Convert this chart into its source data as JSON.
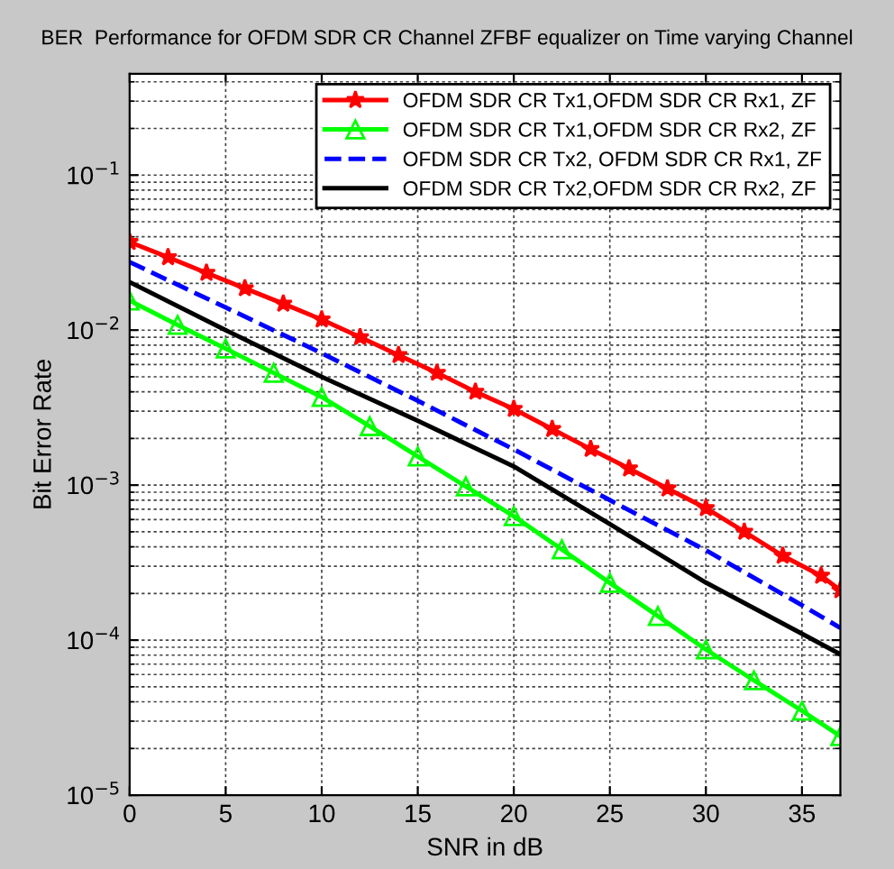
{
  "chart_data": {
    "type": "line",
    "title": "BER  Performance for OFDM SDR CR Channel ZFBF equalizer on Time varying Channel",
    "xlabel": "SNR in dB",
    "ylabel": "Bit Error Rate",
    "log": "y",
    "xlim": [
      0,
      37
    ],
    "ylim": [
      1e-05,
      0.45
    ],
    "xticks": [
      0,
      5,
      10,
      15,
      20,
      25,
      30,
      35
    ],
    "yticks": [
      {
        "value": 1e-05,
        "label": "10$^{−5}$"
      },
      {
        "value": 0.0001,
        "label": "10$^{−4}$"
      },
      {
        "value": 0.001,
        "label": "10$^{−3}$"
      },
      {
        "value": 0.01,
        "label": "10$^{−2}$"
      },
      {
        "value": 0.1,
        "label": "10$^{−1}$"
      }
    ],
    "grid": true,
    "legend": "top right",
    "series": [
      {
        "name": "OFDM SDR CR Tx1,OFDM SDR CR Rx1, ZF",
        "color": "#ff0000",
        "marker": "star",
        "line_style": "solid",
        "x": [
          0,
          2,
          4,
          6,
          8,
          10,
          12,
          14,
          16,
          18,
          20,
          22,
          24,
          26,
          28,
          30,
          32,
          34,
          36,
          37
        ],
        "values": [
          0.037,
          0.0295,
          0.0234,
          0.0186,
          0.0148,
          0.0117,
          0.009,
          0.0069,
          0.0053,
          0.004,
          0.0031,
          0.0023,
          0.00171,
          0.00128,
          0.00095,
          0.00071,
          0.0005,
          0.00035,
          0.00026,
          0.00021
        ]
      },
      {
        "name": "OFDM SDR CR Tx1,OFDM SDR CR Rx2, ZF",
        "color": "#00ff00",
        "marker": "triangle",
        "line_style": "solid",
        "x": [
          0,
          2.5,
          5,
          7.5,
          10,
          12.5,
          15,
          17.5,
          20,
          22.5,
          25,
          27.5,
          30,
          32.5,
          35,
          37
        ],
        "values": [
          0.0155,
          0.0108,
          0.0076,
          0.0053,
          0.0037,
          0.0024,
          0.00153,
          0.00098,
          0.00063,
          0.000385,
          0.000234,
          0.000143,
          8.7e-05,
          5.5e-05,
          3.5e-05,
          2.4e-05
        ]
      },
      {
        "name": "OFDM SDR CR Tx2, OFDM SDR CR Rx1, ZF",
        "color": "#0000ff",
        "marker": "none",
        "line_style": "dashed",
        "x": [
          0,
          5,
          10,
          15,
          20,
          25,
          30,
          35,
          37
        ],
        "values": [
          0.0275,
          0.014,
          0.0071,
          0.0035,
          0.0017,
          0.0008,
          0.00038,
          0.000168,
          0.00012
        ]
      },
      {
        "name": "OFDM SDR CR Tx2,OFDM SDR CR Rx2, ZF",
        "color": "#000000",
        "marker": "none",
        "line_style": "solid",
        "x": [
          0,
          5,
          10,
          15,
          20,
          25,
          30,
          35,
          37
        ],
        "values": [
          0.0204,
          0.01,
          0.005,
          0.0026,
          0.00132,
          0.00056,
          0.000235,
          0.00011,
          8.1e-05
        ]
      }
    ]
  }
}
